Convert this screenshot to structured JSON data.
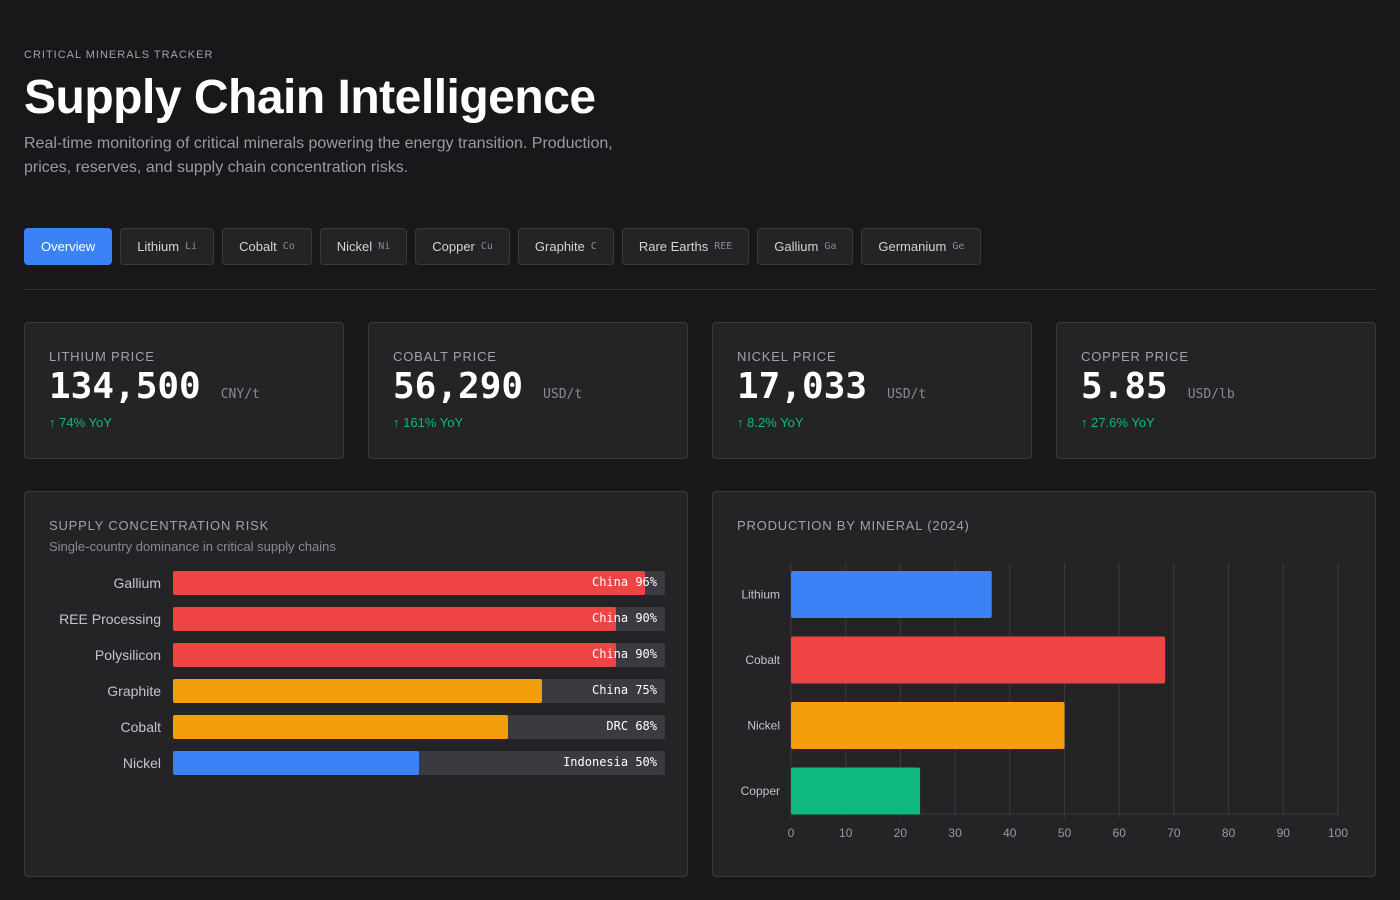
{
  "header": {
    "eyebrow": "CRITICAL MINERALS TRACKER",
    "title": "Supply Chain Intelligence",
    "subtitle": "Real-time monitoring of critical minerals powering the energy transition. Production, prices, reserves, and supply chain concentration risks."
  },
  "tabs": [
    {
      "label": "Overview",
      "sym": "",
      "active": true
    },
    {
      "label": "Lithium",
      "sym": "Li"
    },
    {
      "label": "Cobalt",
      "sym": "Co"
    },
    {
      "label": "Nickel",
      "sym": "Ni"
    },
    {
      "label": "Copper",
      "sym": "Cu"
    },
    {
      "label": "Graphite",
      "sym": "C"
    },
    {
      "label": "Rare Earths",
      "sym": "REE"
    },
    {
      "label": "Gallium",
      "sym": "Ga"
    },
    {
      "label": "Germanium",
      "sym": "Ge"
    }
  ],
  "kpis": [
    {
      "label": "LITHIUM PRICE",
      "value": "134,500",
      "unit": "CNY/t",
      "change": "↑ 74% YoY"
    },
    {
      "label": "COBALT PRICE",
      "value": "56,290",
      "unit": "USD/t",
      "change": "↑ 161% YoY"
    },
    {
      "label": "NICKEL PRICE",
      "value": "17,033",
      "unit": "USD/t",
      "change": "↑ 8.2% YoY"
    },
    {
      "label": "COPPER PRICE",
      "value": "5.85",
      "unit": "USD/lb",
      "change": "↑ 27.6% YoY"
    }
  ],
  "concentration": {
    "title": "SUPPLY CONCENTRATION RISK",
    "subtitle": "Single-country dominance in critical supply chains",
    "rows": [
      {
        "name": "Gallium",
        "label": "China 96%",
        "pct": 96,
        "color": "#ef4444"
      },
      {
        "name": "REE Processing",
        "label": "China 90%",
        "pct": 90,
        "color": "#ef4444"
      },
      {
        "name": "Polysilicon",
        "label": "China 90%",
        "pct": 90,
        "color": "#ef4444"
      },
      {
        "name": "Graphite",
        "label": "China 75%",
        "pct": 75,
        "color": "#f59e0b"
      },
      {
        "name": "Cobalt",
        "label": "DRC 68%",
        "pct": 68,
        "color": "#f59e0b"
      },
      {
        "name": "Nickel",
        "label": "Indonesia 50%",
        "pct": 50,
        "color": "#3b82f6"
      }
    ]
  },
  "chart_data": {
    "type": "bar",
    "orientation": "horizontal",
    "title": "PRODUCTION BY MINERAL (2024)",
    "categories": [
      "Lithium",
      "Cobalt",
      "Nickel",
      "Copper"
    ],
    "values": [
      36.7,
      68.4,
      50,
      23.6
    ],
    "colors": [
      "#3b82f6",
      "#ef4444",
      "#f59e0b",
      "#10b981"
    ],
    "xlim": [
      0,
      100
    ],
    "xticks": [
      "0",
      "10",
      "20",
      "30",
      "40",
      "50",
      "60",
      "70",
      "80",
      "90",
      "100"
    ],
    "grid": true
  }
}
